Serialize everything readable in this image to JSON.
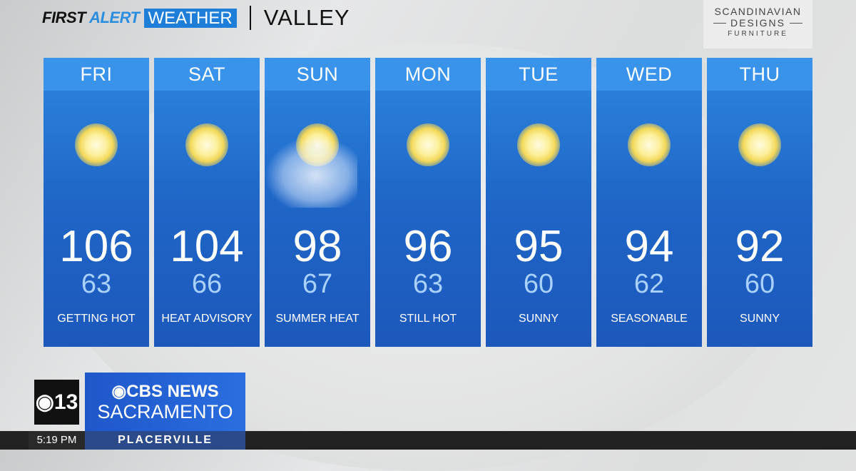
{
  "header": {
    "brand_part1": "FIRST",
    "brand_part2": "ALERT",
    "brand_part3": "WEATHER",
    "region": "VALLEY"
  },
  "sponsor": {
    "line1": "SCANDINAVIAN",
    "line2": "DESIGNS",
    "line3": "FURNITURE"
  },
  "days": [
    {
      "day": "FRI",
      "high": "106",
      "low": "63",
      "desc": "GETTING HOT",
      "icon": "sun-icon"
    },
    {
      "day": "SAT",
      "high": "104",
      "low": "66",
      "desc": "HEAT ADVISORY",
      "icon": "sun-icon"
    },
    {
      "day": "SUN",
      "high": "98",
      "low": "67",
      "desc": "SUMMER HEAT",
      "icon": "partly-cloudy-icon"
    },
    {
      "day": "MON",
      "high": "96",
      "low": "63",
      "desc": "STILL HOT",
      "icon": "sun-icon"
    },
    {
      "day": "TUE",
      "high": "95",
      "low": "60",
      "desc": "SUNNY",
      "icon": "sun-icon"
    },
    {
      "day": "WED",
      "high": "94",
      "low": "62",
      "desc": "SEASONABLE",
      "icon": "sun-icon"
    },
    {
      "day": "THU",
      "high": "92",
      "low": "60",
      "desc": "SUNNY",
      "icon": "sun-icon"
    }
  ],
  "station": {
    "channel": "13",
    "network": "CBS NEWS",
    "city": "SACRAMENTO"
  },
  "ticker": {
    "time": "5:19 PM",
    "location": "PLACERVILLE"
  },
  "colors": {
    "accent": "#1f7fd8",
    "card": "#1f66c7"
  }
}
